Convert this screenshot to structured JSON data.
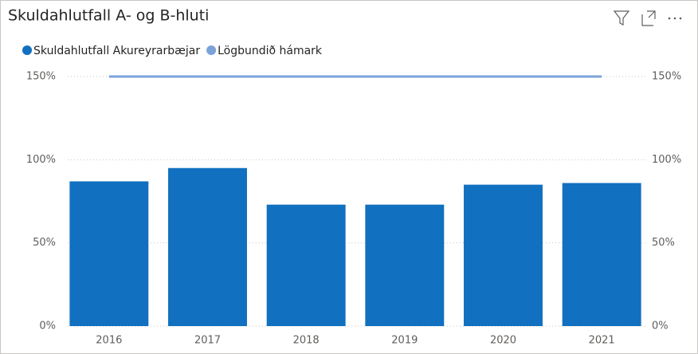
{
  "chart_data": {
    "type": "bar_line",
    "title": "Skuldahlutfall A- og B-hluti",
    "categories": [
      "2016",
      "2017",
      "2018",
      "2019",
      "2020",
      "2021"
    ],
    "series": [
      {
        "name": "Skuldahlutfall Akureyrarbæjar",
        "color": "#1170bf",
        "type": "bar",
        "values": [
          87,
          95,
          73,
          73,
          85,
          86
        ]
      },
      {
        "name": "Lögbundið hámark",
        "color": "#7ba3da",
        "type": "line",
        "axis": "y2",
        "values": [
          150,
          150,
          150,
          150,
          150,
          150
        ]
      }
    ],
    "ylim": [
      0,
      150
    ],
    "yticks": [
      {
        "value": 0,
        "label": "0%"
      },
      {
        "value": 50,
        "label": "50%"
      },
      {
        "value": 100,
        "label": "100%"
      },
      {
        "value": 150,
        "label": "150%"
      }
    ],
    "y2lim": [
      0,
      150
    ],
    "y2ticks": [
      {
        "value": 0,
        "label": "0%"
      },
      {
        "value": 50,
        "label": "50%"
      },
      {
        "value": 100,
        "label": "100%"
      },
      {
        "value": 150,
        "label": "150%"
      }
    ],
    "grid": true,
    "legend": "top-left"
  }
}
